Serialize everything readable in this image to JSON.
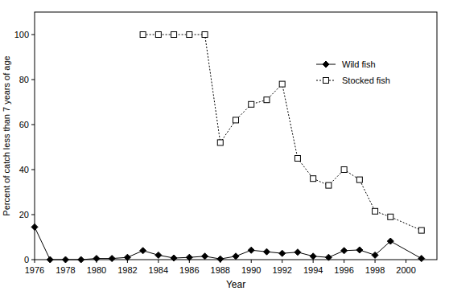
{
  "chart_data": {
    "type": "line",
    "x_label": "Year",
    "y_label": "Percent of catch less than 7 years of age",
    "x": [
      1976,
      1977,
      1978,
      1979,
      1980,
      1981,
      1982,
      1983,
      1984,
      1985,
      1986,
      1987,
      1988,
      1989,
      1990,
      1991,
      1992,
      1993,
      1994,
      1995,
      1996,
      1997,
      1998,
      1999,
      2001
    ],
    "series": [
      {
        "name": "Wild fish",
        "color": "#000000",
        "marker": "diamond",
        "line_style": "solid",
        "values": [
          14.5,
          0,
          0,
          0,
          0.5,
          0.5,
          1,
          4,
          2,
          0.7,
          1,
          1.5,
          0.3,
          1.5,
          4.2,
          3.5,
          2.8,
          3.3,
          1.5,
          1,
          4,
          4.3,
          2,
          8.2,
          0.5
        ]
      },
      {
        "name": "Stocked fish",
        "color": "#000000",
        "marker": "square",
        "line_style": "dotted",
        "values": [
          null,
          null,
          null,
          null,
          null,
          null,
          null,
          100,
          100,
          100,
          100,
          100,
          52,
          62,
          69,
          71,
          78,
          45,
          36,
          33,
          40,
          35.5,
          21.5,
          19,
          13
        ]
      }
    ],
    "xlim": [
      1976,
      2002
    ],
    "xticks": [
      1976,
      1978,
      1980,
      1982,
      1984,
      1986,
      1988,
      1990,
      1992,
      1994,
      1996,
      1998,
      2000
    ],
    "ylim": [
      0,
      110
    ],
    "yticks": [
      0,
      20,
      40,
      60,
      80,
      100
    ],
    "legend": "top-right",
    "grid": false
  }
}
